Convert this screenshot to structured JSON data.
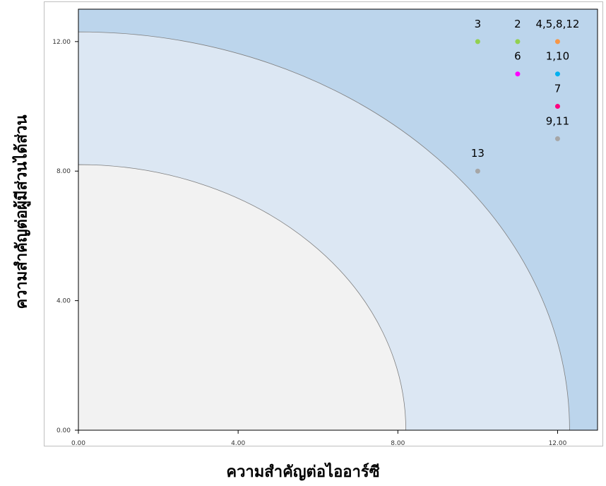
{
  "chart_data": {
    "type": "scatter",
    "title": "",
    "xlabel": "ความสำคัญต่อไออาร์ซี",
    "ylabel": "ความสำคัญต่อผู้มีส่วนได้ส่วน",
    "xlim": [
      0,
      13.0
    ],
    "ylim": [
      0,
      13.0
    ],
    "x_ticks": [
      "0.00",
      "4.00",
      "8.00",
      "12.00"
    ],
    "y_ticks": [
      "0.00",
      "4.00",
      "8.00",
      "12.00"
    ],
    "grid": false,
    "background_bands": [
      {
        "radius": 13.0,
        "color": "#bcd5ec"
      },
      {
        "radius": 12.3,
        "color": "#dce7f3"
      },
      {
        "radius": 8.2,
        "color": "#f2f2f2"
      }
    ],
    "points": [
      {
        "x": 10,
        "y": 12,
        "label": "3",
        "color": "#92d050"
      },
      {
        "x": 11,
        "y": 12,
        "label": "2",
        "color": "#92d050"
      },
      {
        "x": 12,
        "y": 12,
        "label": "4,5,8,12",
        "color": "#f79646"
      },
      {
        "x": 11,
        "y": 11,
        "label": "6",
        "color": "#ff00ff"
      },
      {
        "x": 12,
        "y": 11,
        "label": "1,10",
        "color": "#00b0f0"
      },
      {
        "x": 12,
        "y": 10,
        "label": "7",
        "color": "#ff0080"
      },
      {
        "x": 12,
        "y": 9,
        "label": "9,11",
        "color": "#a6a6a6"
      },
      {
        "x": 10,
        "y": 8,
        "label": "13",
        "color": "#a6a6a6"
      }
    ]
  }
}
